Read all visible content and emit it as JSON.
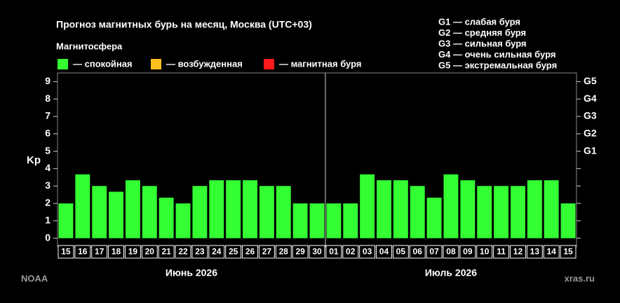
{
  "chart_data": {
    "type": "bar",
    "title": "Прогноз магнитных бурь на месяц, Москва (UTC+03)",
    "legend": {
      "title": "Магнитосфера",
      "items": [
        {
          "label": "— спокойная",
          "color": "#33ff33"
        },
        {
          "label": "— возбужденная",
          "color": "#ffbf1f"
        },
        {
          "label": "— магнитная буря",
          "color": "#ff1a1a"
        }
      ]
    },
    "g_scale": [
      "G1 — слабая буря",
      "G2 — средняя буря",
      "G3 — сильная буря",
      "G4 — очень сильная буря",
      "G5 — экстремальная буря"
    ],
    "y_label": "Kp",
    "categories": [
      "15",
      "16",
      "17",
      "18",
      "19",
      "20",
      "21",
      "22",
      "23",
      "24",
      "25",
      "26",
      "27",
      "28",
      "29",
      "30",
      "01",
      "02",
      "03",
      "04",
      "05",
      "06",
      "07",
      "08",
      "09",
      "10",
      "11",
      "12",
      "13",
      "14",
      "15"
    ],
    "months": [
      "Июнь 2026",
      "Июль 2026"
    ],
    "values": [
      2,
      3.67,
      3,
      2.67,
      3.33,
      3,
      2.33,
      2,
      3,
      3.33,
      3.33,
      3.33,
      3,
      3,
      2,
      2,
      2,
      2,
      3.67,
      3.33,
      3.33,
      3,
      2.33,
      3.67,
      3.33,
      3,
      3,
      3,
      3.33,
      3.33,
      2
    ],
    "ylim": [
      -0.5,
      9.5
    ],
    "yticks": [
      0,
      1,
      2,
      3,
      4,
      5,
      6,
      7,
      8,
      9
    ],
    "y2ticks": [
      {
        "value": 5,
        "label": "G1"
      },
      {
        "value": 6,
        "label": "G2"
      },
      {
        "value": 7,
        "label": "G3"
      },
      {
        "value": 8,
        "label": "G4"
      },
      {
        "value": 9,
        "label": "G5"
      }
    ],
    "sources": [
      "NOAA",
      "xras.ru"
    ]
  }
}
